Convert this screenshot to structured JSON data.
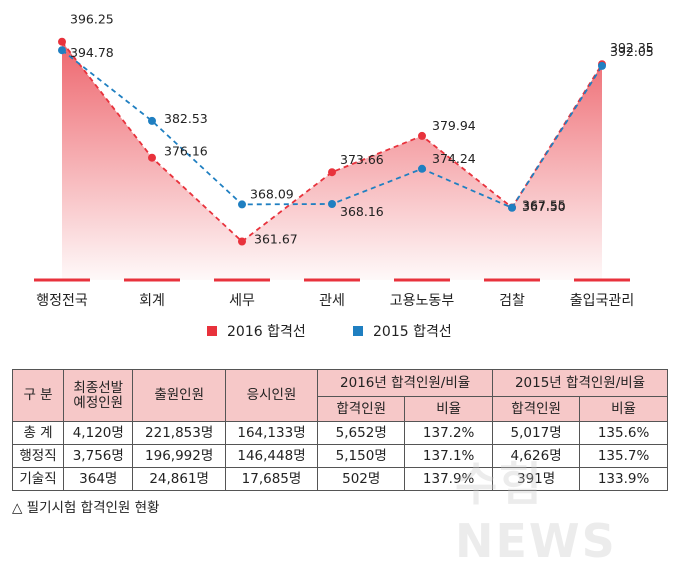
{
  "chart_data": {
    "type": "line",
    "categories": [
      "행정전국",
      "회계",
      "세무",
      "관세",
      "고용노동부",
      "검찰",
      "출입국관리"
    ],
    "series": [
      {
        "name": "2016 합격선",
        "color": "#e8323c",
        "values": [
          396.25,
          376.16,
          361.67,
          373.66,
          379.94,
          367.55,
          392.35
        ],
        "labels": [
          "396.25",
          "376.16",
          "361.67",
          "373.66",
          "379.94",
          "367.55",
          "392.35"
        ]
      },
      {
        "name": "2015 합격선",
        "color": "#1f7fc1",
        "values": [
          394.78,
          382.53,
          368.09,
          368.16,
          374.24,
          367.5,
          392.05
        ],
        "labels": [
          "394.78",
          "382.53",
          "368.09",
          "368.16",
          "374.24",
          "367.50",
          "392.05"
        ]
      }
    ],
    "ylim": [
      355,
      400
    ],
    "area_fill": "2016 합격선",
    "legend_position": "bottom-center",
    "grid": false
  },
  "table": {
    "header_row1": [
      "구 분",
      "최종선발\n예정인원",
      "출원인원",
      "응시인원",
      "2016년 합격인원/비율",
      "2015년 합격인원/비율"
    ],
    "header_row2": [
      "합격인원",
      "비율",
      "합격인원",
      "비율"
    ],
    "rows": [
      [
        "총 계",
        "4,120명",
        "221,853명",
        "164,133명",
        "5,652명",
        "137.2%",
        "5,017명",
        "135.6%"
      ],
      [
        "행정직",
        "3,756명",
        "196,992명",
        "146,448명",
        "5,150명",
        "137.1%",
        "4,626명",
        "135.7%"
      ],
      [
        "기술직",
        "364명",
        "24,861명",
        "17,685명",
        "502명",
        "137.9%",
        "391명",
        "133.9%"
      ]
    ],
    "header_color": "#f6c8c8"
  },
  "caption": "△ 필기시험 합격인원 현황",
  "watermark": "수험NEWS"
}
